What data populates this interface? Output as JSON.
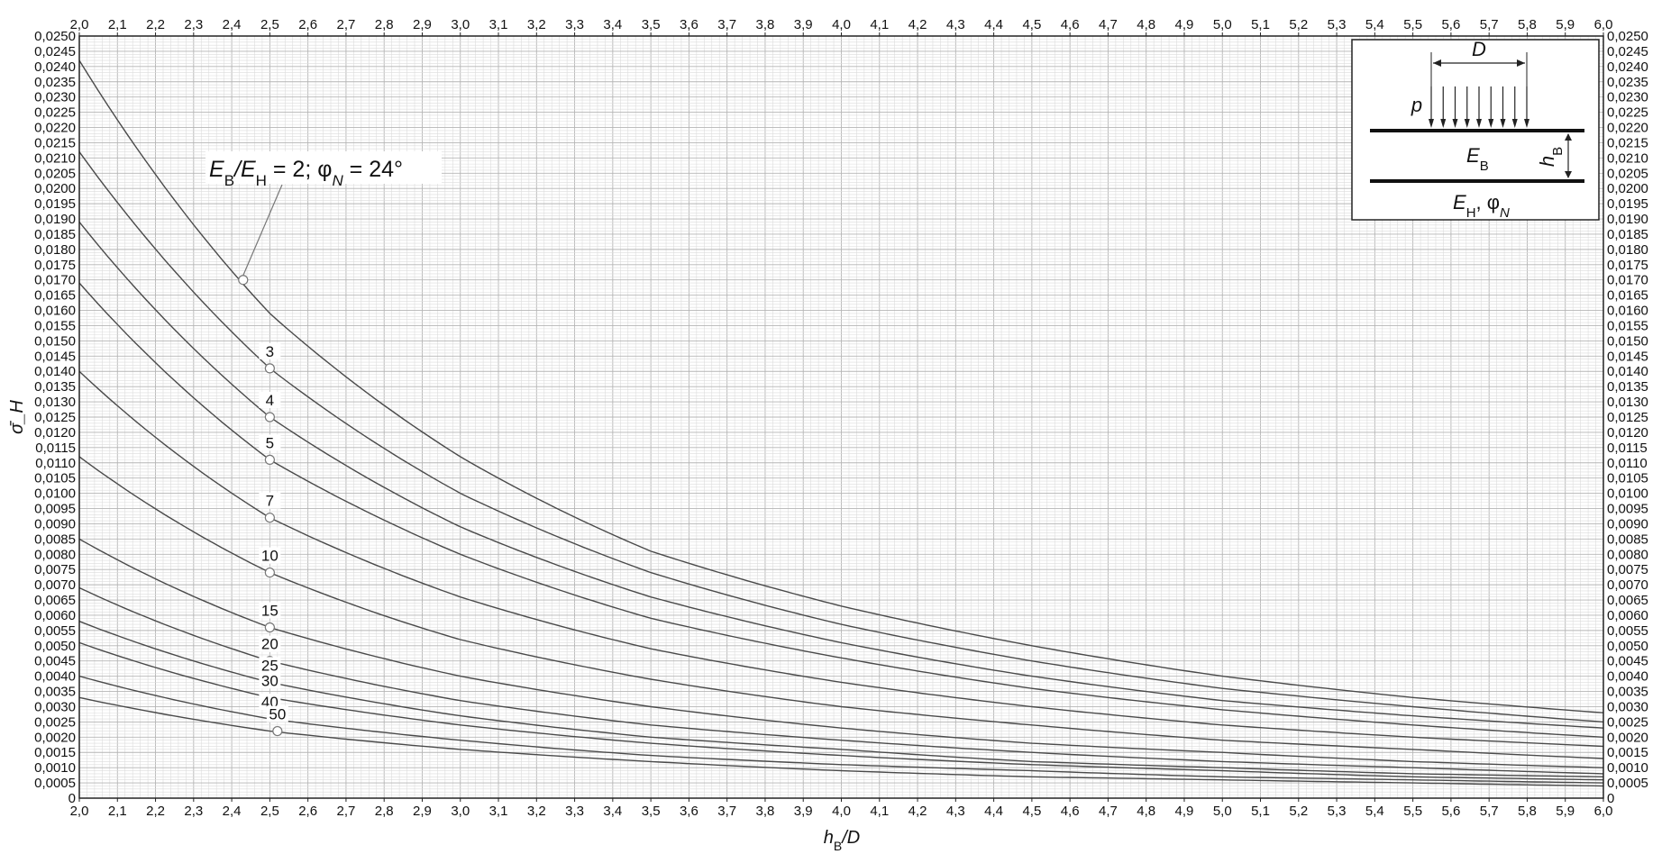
{
  "chart_data": {
    "type": "line",
    "xlabel": "h_B/D",
    "ylabel": "σ̄_H",
    "xlim": [
      2.0,
      6.0
    ],
    "ylim": [
      0,
      0.025
    ],
    "x_tick_labels": [
      "2,0",
      "2,1",
      "2,2",
      "2,3",
      "2,4",
      "2,5",
      "2,6",
      "2,7",
      "2,8",
      "2,9",
      "3,0",
      "3,1",
      "3,2",
      "3,3",
      "3,4",
      "3,5",
      "3,6",
      "3,7",
      "3,8",
      "3,9",
      "4,0",
      "4,1",
      "4,2",
      "4,3",
      "4,4",
      "4,5",
      "4,6",
      "4,7",
      "4,8",
      "4,9",
      "5,0",
      "5,1",
      "5,2",
      "5,3",
      "5,4",
      "5,5",
      "5,6",
      "5,7",
      "5,8",
      "5,9",
      "6,0"
    ],
    "y_tick_labels": [
      "0",
      "0,0005",
      "0,0010",
      "0,0015",
      "0,0020",
      "0,0025",
      "0,0030",
      "0,0035",
      "0,0040",
      "0,0045",
      "0,0050",
      "0,0055",
      "0,0060",
      "0,0065",
      "0,0070",
      "0,0075",
      "0,0080",
      "0,0085",
      "0,0090",
      "0,0095",
      "0,0100",
      "0,0105",
      "0,0110",
      "0,0115",
      "0,0120",
      "0,0125",
      "0,0130",
      "0,0135",
      "0,0140",
      "0,0145",
      "0,0150",
      "0,0155",
      "0,0160",
      "0,0165",
      "0,0170",
      "0,0175",
      "0,0180",
      "0,0185",
      "0,0190",
      "0,0195",
      "0,0200",
      "0,0205",
      "0,0210",
      "0,0215",
      "0,0220",
      "0,0225",
      "0,0230",
      "0,0235",
      "0,0240",
      "0,0245",
      "0,0250"
    ],
    "grid": true,
    "x": [
      2.0,
      2.5,
      3.0,
      3.5,
      4.0,
      4.5,
      5.0,
      5.5,
      6.0
    ],
    "series": [
      {
        "name": "E_B/E_H = 2; φ_N = 24°",
        "values": [
          0.0242,
          0.0159,
          0.0112,
          0.0081,
          0.0063,
          0.005,
          0.004,
          0.0033,
          0.0028
        ]
      },
      {
        "name": "3",
        "values": [
          0.0212,
          0.0141,
          0.01,
          0.0074,
          0.0057,
          0.0045,
          0.0036,
          0.003,
          0.0025
        ]
      },
      {
        "name": "4",
        "values": [
          0.0189,
          0.0125,
          0.0089,
          0.0066,
          0.0051,
          0.004,
          0.0032,
          0.0027,
          0.0023
        ]
      },
      {
        "name": "5",
        "values": [
          0.0169,
          0.0111,
          0.008,
          0.0059,
          0.0046,
          0.0036,
          0.0029,
          0.0024,
          0.002
        ]
      },
      {
        "name": "7",
        "values": [
          0.014,
          0.0092,
          0.0066,
          0.0049,
          0.0038,
          0.003,
          0.0024,
          0.002,
          0.0017
        ]
      },
      {
        "name": "10",
        "values": [
          0.0112,
          0.0074,
          0.0052,
          0.0039,
          0.003,
          0.0024,
          0.0019,
          0.0016,
          0.0013
        ]
      },
      {
        "name": "15",
        "values": [
          0.0085,
          0.0056,
          0.004,
          0.003,
          0.0023,
          0.0018,
          0.0015,
          0.0012,
          0.001
        ]
      },
      {
        "name": "20",
        "values": [
          0.0069,
          0.0045,
          0.0032,
          0.0024,
          0.0019,
          0.0015,
          0.0012,
          0.001,
          0.0008
        ]
      },
      {
        "name": "25",
        "values": [
          0.0058,
          0.0038,
          0.0027,
          0.002,
          0.0016,
          0.0012,
          0.001,
          0.0008,
          0.0007
        ]
      },
      {
        "name": "30",
        "values": [
          0.0051,
          0.0033,
          0.0024,
          0.0018,
          0.0014,
          0.0011,
          0.0009,
          0.0007,
          0.0006
        ]
      },
      {
        "name": "40",
        "values": [
          0.004,
          0.0026,
          0.0019,
          0.0014,
          0.0011,
          0.0009,
          0.0007,
          0.0006,
          0.0005
        ]
      },
      {
        "name": "50",
        "values": [
          0.0033,
          0.0022,
          0.0016,
          0.0012,
          0.0009,
          0.0007,
          0.0006,
          0.0005,
          0.0004
        ]
      }
    ],
    "curve_labels": [
      {
        "text": "3",
        "x": 2.5,
        "y": 0.0141,
        "marker": true
      },
      {
        "text": "4",
        "x": 2.5,
        "y": 0.0125,
        "marker": true
      },
      {
        "text": "5",
        "x": 2.5,
        "y": 0.0111,
        "marker": true
      },
      {
        "text": "7",
        "x": 2.5,
        "y": 0.0092,
        "marker": true
      },
      {
        "text": "10",
        "x": 2.5,
        "y": 0.0074,
        "marker": true
      },
      {
        "text": "15",
        "x": 2.5,
        "y": 0.0056,
        "marker": true
      },
      {
        "text": "20",
        "x": 2.5,
        "y": 0.0045,
        "marker": true
      },
      {
        "text": "25",
        "x": 2.5,
        "y": 0.0038,
        "marker": false
      },
      {
        "text": "30",
        "x": 2.5,
        "y": 0.0033,
        "marker": false
      },
      {
        "text": "40",
        "x": 2.5,
        "y": 0.0026,
        "marker": false
      },
      {
        "text": "50",
        "x": 2.52,
        "y": 0.0022,
        "marker": true
      }
    ],
    "callout": {
      "prefix": "E",
      "sub1": "B",
      "mid": "/E",
      "sub2": "H",
      "rest": " = 2; φ",
      "sub3": "N",
      "tail": " = 24°",
      "x": 2.43,
      "y": 0.017
    },
    "inset": {
      "diameter_label": "D",
      "load_label": "p",
      "upper_modulus": "E",
      "upper_sub": "B",
      "thickness": "h",
      "thickness_sub": "B",
      "lower_label": "E",
      "lower_sub": "H",
      "lower_phi": "φ",
      "lower_phi_sub": "N"
    },
    "colors": {
      "curve": "#4a4a4a",
      "grid_minor": "#dcdcdc",
      "grid_major": "#b5b5b5",
      "frame": "#222222"
    }
  }
}
